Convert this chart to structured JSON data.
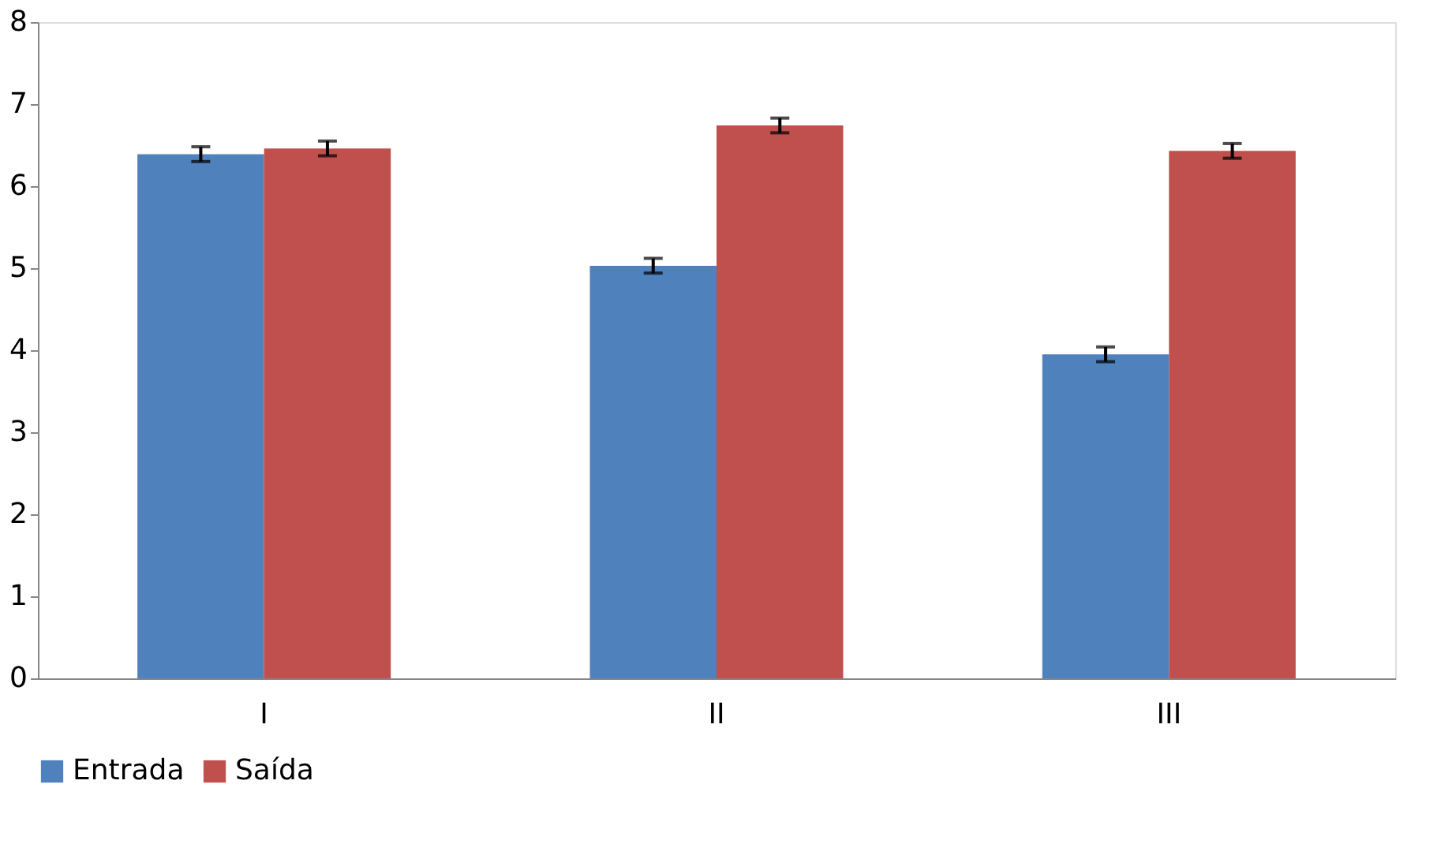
{
  "chart_data": {
    "type": "bar",
    "categories": [
      "I",
      "II",
      "III"
    ],
    "series": [
      {
        "name": "Entrada",
        "color": "#4f81bd",
        "values": [
          6.39,
          5.03,
          3.95
        ],
        "errors": [
          0.09,
          0.09,
          0.09
        ]
      },
      {
        "name": "Saída",
        "color": "#c0504d",
        "values": [
          6.46,
          6.74,
          6.43
        ],
        "errors": [
          0.09,
          0.09,
          0.09
        ]
      }
    ],
    "ylim": [
      0,
      8
    ],
    "yticks": [
      0,
      1,
      2,
      3,
      4,
      5,
      6,
      7,
      8
    ],
    "grid": false,
    "legend": "bottom"
  }
}
